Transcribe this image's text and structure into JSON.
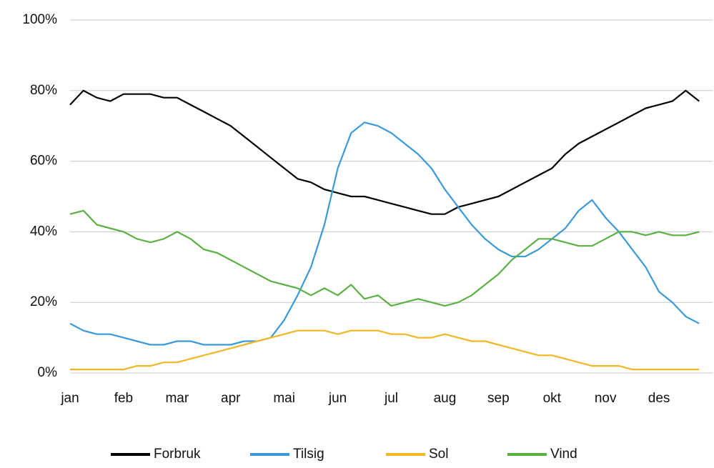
{
  "chart_data": {
    "type": "line",
    "categories": [
      "jan",
      null,
      null,
      null,
      "feb",
      null,
      null,
      null,
      "mar",
      null,
      null,
      null,
      "apr",
      null,
      null,
      null,
      "mai",
      null,
      null,
      null,
      "jun",
      null,
      null,
      null,
      "jul",
      null,
      null,
      null,
      "aug",
      null,
      null,
      null,
      "sep",
      null,
      null,
      null,
      "okt",
      null,
      null,
      null,
      "nov",
      null,
      null,
      null,
      "des",
      null,
      null,
      null
    ],
    "series": [
      {
        "name": "Forbruk",
        "color": "#000000",
        "values": [
          76,
          80,
          78,
          77,
          79,
          79,
          79,
          78,
          78,
          76,
          74,
          72,
          70,
          67,
          64,
          61,
          58,
          55,
          54,
          52,
          51,
          50,
          50,
          49,
          48,
          47,
          46,
          45,
          45,
          47,
          48,
          49,
          50,
          52,
          54,
          56,
          58,
          62,
          65,
          67,
          69,
          71,
          73,
          75,
          76,
          77,
          80,
          77
        ]
      },
      {
        "name": "Tilsig",
        "color": "#3a9ad9",
        "values": [
          14,
          12,
          11,
          11,
          10,
          9,
          8,
          8,
          9,
          9,
          8,
          8,
          8,
          9,
          9,
          10,
          15,
          22,
          30,
          42,
          58,
          68,
          71,
          70,
          68,
          65,
          62,
          58,
          52,
          47,
          42,
          38,
          35,
          33,
          33,
          35,
          38,
          41,
          46,
          49,
          44,
          40,
          35,
          30,
          23,
          20,
          16,
          14
        ]
      },
      {
        "name": "Sol",
        "color": "#f2b824",
        "values": [
          1,
          1,
          1,
          1,
          1,
          2,
          2,
          3,
          3,
          4,
          5,
          6,
          7,
          8,
          9,
          10,
          11,
          12,
          12,
          12,
          11,
          12,
          12,
          12,
          11,
          11,
          10,
          10,
          11,
          10,
          9,
          9,
          8,
          7,
          6,
          5,
          5,
          4,
          3,
          2,
          2,
          2,
          1,
          1,
          1,
          1,
          1,
          1
        ]
      },
      {
        "name": "Vind",
        "color": "#5bb043",
        "values": [
          45,
          46,
          42,
          41,
          40,
          38,
          37,
          38,
          40,
          38,
          35,
          34,
          32,
          30,
          28,
          26,
          25,
          24,
          22,
          24,
          22,
          25,
          21,
          22,
          19,
          20,
          21,
          20,
          19,
          20,
          22,
          25,
          28,
          32,
          35,
          38,
          38,
          37,
          36,
          36,
          38,
          40,
          40,
          39,
          40,
          39,
          39,
          40
        ]
      }
    ],
    "ylim": [
      0,
      100
    ],
    "yticks": [
      {
        "value": 0,
        "label": "0%"
      },
      {
        "value": 20,
        "label": "20%"
      },
      {
        "value": 40,
        "label": "40%"
      },
      {
        "value": 60,
        "label": "60%"
      },
      {
        "value": 80,
        "label": "80%"
      },
      {
        "value": 100,
        "label": "100%"
      }
    ],
    "grid": true
  }
}
